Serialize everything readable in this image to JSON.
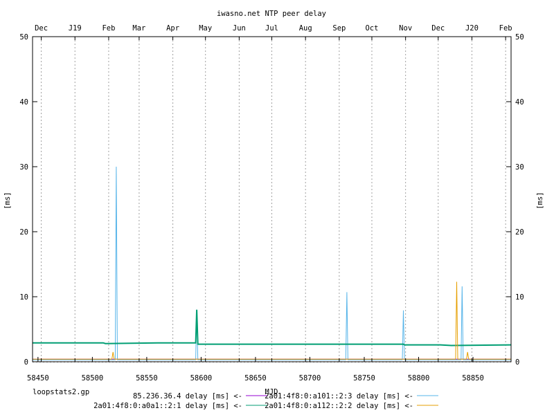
{
  "chart_data": {
    "type": "line",
    "title": "iwasno.net NTP peer delay",
    "xlabel": "MJD",
    "ylabel": "[ms]",
    "ylabel_right": "[ms]",
    "xlim": [
      58445,
      58885
    ],
    "ylim": [
      0,
      50
    ],
    "x_ticks": [
      58450,
      58500,
      58550,
      58600,
      58650,
      58700,
      58750,
      58800,
      58850
    ],
    "y_ticks": [
      0,
      10,
      20,
      30,
      40,
      50
    ],
    "top_axis": [
      {
        "label": "Dec",
        "mjd": 58453
      },
      {
        "label": "J19",
        "mjd": 58484
      },
      {
        "label": "Feb",
        "mjd": 58515
      },
      {
        "label": "Mar",
        "mjd": 58543
      },
      {
        "label": "Apr",
        "mjd": 58574
      },
      {
        "label": "May",
        "mjd": 58604
      },
      {
        "label": "Jun",
        "mjd": 58635
      },
      {
        "label": "Jul",
        "mjd": 58665
      },
      {
        "label": "Aug",
        "mjd": 58696
      },
      {
        "label": "Sep",
        "mjd": 58727
      },
      {
        "label": "Oct",
        "mjd": 58757
      },
      {
        "label": "Nov",
        "mjd": 58788
      },
      {
        "label": "Dec",
        "mjd": 58818
      },
      {
        "label": "J20",
        "mjd": 58849
      },
      {
        "label": "Feb",
        "mjd": 58880
      }
    ],
    "grid": "vertical dashed at month boundaries",
    "series": [
      {
        "name": "85.236.36.4 delay [ms] <-",
        "color": "#9400d3",
        "points": [
          [
            58445,
            0.4
          ],
          [
            58885,
            0.4
          ]
        ]
      },
      {
        "name": "2a01:4f8:0:a101::2:3 delay [ms] <-",
        "color": "#56b4e9",
        "points": [
          [
            58445,
            0.3
          ],
          [
            58521,
            0.3
          ],
          [
            58522,
            30.0
          ],
          [
            58523,
            0.3
          ],
          [
            58595,
            0.3
          ],
          [
            58596,
            8.0
          ],
          [
            58597,
            0.3
          ],
          [
            58733,
            0.3
          ],
          [
            58734,
            10.7
          ],
          [
            58735,
            0.3
          ],
          [
            58785,
            0.3
          ],
          [
            58786,
            7.9
          ],
          [
            58787,
            0.3
          ],
          [
            58839,
            0.3
          ],
          [
            58840,
            11.6
          ],
          [
            58841,
            0.3
          ],
          [
            58885,
            0.3
          ]
        ]
      },
      {
        "name": "2a01:4f8:0:a0a1::2:1 delay [ms] <-",
        "color": "#009e73",
        "points": [
          [
            58445,
            2.9
          ],
          [
            58510,
            2.9
          ],
          [
            58512,
            2.8
          ],
          [
            58560,
            2.9
          ],
          [
            58595,
            2.9
          ],
          [
            58596,
            8.0
          ],
          [
            58597,
            2.7
          ],
          [
            58700,
            2.7
          ],
          [
            58786,
            2.7
          ],
          [
            58787,
            2.6
          ],
          [
            58820,
            2.6
          ],
          [
            58830,
            2.5
          ],
          [
            58885,
            2.6
          ]
        ]
      },
      {
        "name": "2a01:4f8:0:a112::2:2 delay [ms] <-",
        "color": "#e69f00",
        "points": [
          [
            58445,
            0.4
          ],
          [
            58518,
            0.4
          ],
          [
            58519,
            1.5
          ],
          [
            58520,
            0.4
          ],
          [
            58834,
            0.4
          ],
          [
            58835,
            12.3
          ],
          [
            58836,
            0.4
          ],
          [
            58844,
            0.4
          ],
          [
            58845,
            1.5
          ],
          [
            58846,
            0.4
          ],
          [
            58885,
            0.4
          ]
        ]
      }
    ]
  },
  "footer": {
    "script_name": "loopstats2.gp"
  }
}
